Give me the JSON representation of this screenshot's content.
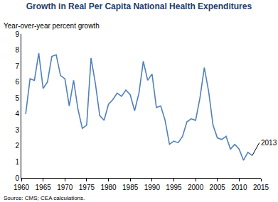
{
  "chart_data": {
    "type": "line",
    "title": "Growth in Real Per Capita National Health Expenditures",
    "subtitle": "Year-over-year percent growth",
    "source": "Source: CMS; CEA calculations.",
    "annotations": [
      "2013"
    ],
    "x": [
      1961,
      1962,
      1963,
      1964,
      1965,
      1966,
      1967,
      1968,
      1969,
      1970,
      1971,
      1972,
      1973,
      1974,
      1975,
      1976,
      1977,
      1978,
      1979,
      1980,
      1981,
      1982,
      1983,
      1984,
      1985,
      1986,
      1987,
      1988,
      1989,
      1990,
      1991,
      1992,
      1993,
      1994,
      1995,
      1996,
      1997,
      1998,
      1999,
      2000,
      2001,
      2002,
      2003,
      2004,
      2005,
      2006,
      2007,
      2008,
      2009,
      2010,
      2011,
      2012,
      2013
    ],
    "series": [
      {
        "name": "Growth",
        "color": "#4f81bd",
        "values": [
          4.0,
          6.2,
          6.1,
          7.8,
          5.6,
          6.0,
          7.6,
          7.7,
          6.4,
          6.2,
          4.5,
          6.1,
          4.3,
          3.1,
          3.3,
          7.5,
          5.9,
          3.9,
          3.6,
          4.6,
          4.9,
          5.3,
          5.1,
          5.5,
          5.2,
          4.2,
          5.3,
          7.3,
          6.1,
          6.5,
          4.4,
          4.5,
          3.6,
          2.1,
          2.3,
          2.2,
          2.6,
          3.5,
          3.7,
          3.6,
          5.0,
          6.9,
          5.4,
          3.3,
          2.5,
          2.4,
          2.6,
          1.8,
          2.1,
          1.8,
          1.1,
          1.6,
          1.4
        ]
      }
    ],
    "xlim": [
      1960,
      2015
    ],
    "xticks": [
      1960,
      1965,
      1970,
      1975,
      1980,
      1985,
      1990,
      1995,
      2000,
      2005,
      2010,
      2015
    ],
    "ylim": [
      0,
      9
    ],
    "yticks": [
      0,
      1,
      2,
      3,
      4,
      5,
      6,
      7,
      8,
      9
    ],
    "grid": false
  }
}
